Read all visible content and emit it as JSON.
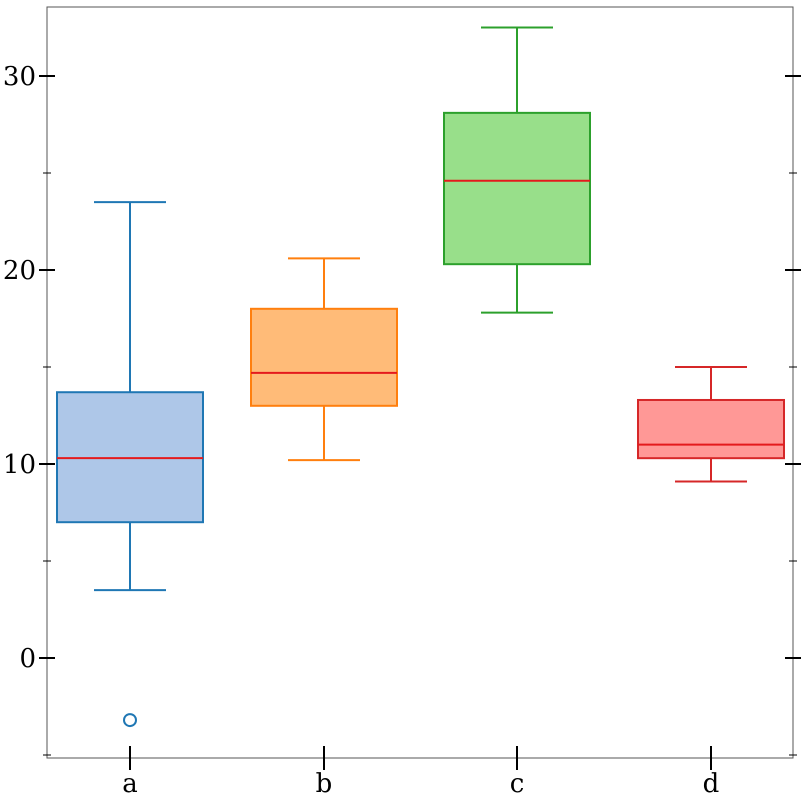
{
  "chart_data": {
    "type": "box",
    "categories": [
      "a",
      "b",
      "c",
      "d"
    ],
    "ylim": [
      -5,
      33.5
    ],
    "yticks_major": [
      0,
      10,
      20,
      30
    ],
    "yticks_major_labels": [
      "0",
      "10",
      "20",
      "30"
    ],
    "yticks_minor": [
      -5,
      5,
      15,
      25
    ],
    "grid": false,
    "legend": "none",
    "series": [
      {
        "category": "a",
        "whisker_low": 3.5,
        "q1": 7.0,
        "median": 10.3,
        "q3": 13.7,
        "whisker_high": 23.5,
        "outliers": [
          -3.2
        ],
        "edge_color": "#1f77b4",
        "fill_color": "#aec7e8"
      },
      {
        "category": "b",
        "whisker_low": 10.2,
        "q1": 13.0,
        "median": 14.7,
        "q3": 18.0,
        "whisker_high": 20.6,
        "outliers": [],
        "edge_color": "#ff7f0e",
        "fill_color": "#ffbb78"
      },
      {
        "category": "c",
        "whisker_low": 17.8,
        "q1": 20.3,
        "median": 24.6,
        "q3": 28.1,
        "whisker_high": 32.5,
        "outliers": [],
        "edge_color": "#2ca02c",
        "fill_color": "#98df8a"
      },
      {
        "category": "d",
        "whisker_low": 9.1,
        "q1": 10.3,
        "median": 11.0,
        "q3": 13.3,
        "whisker_high": 15.0,
        "outliers": [],
        "edge_color": "#d62728",
        "fill_color": "#ff9896"
      }
    ],
    "median_color": "#e41a1c"
  }
}
